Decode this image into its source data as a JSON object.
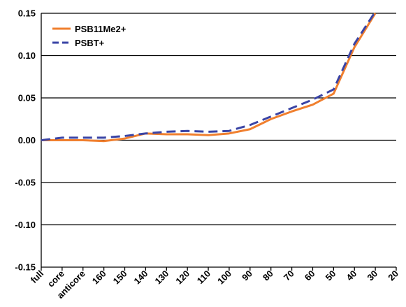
{
  "chart_data": {
    "type": "line",
    "title": "",
    "xlabel": "",
    "ylabel": "",
    "categories": [
      "full",
      "core",
      "anticore",
      "160",
      "150",
      "140",
      "130",
      "120",
      "110",
      "100",
      "90",
      "80",
      "70",
      "60",
      "50",
      "40",
      "30",
      "20"
    ],
    "ylim": [
      -0.15,
      0.15
    ],
    "yticks": [
      "0.15",
      "0.10",
      "0.05",
      "0.00",
      "-0.05",
      "-0.10",
      "-0.15"
    ],
    "grid": "horizontal",
    "legend_position": "top-left",
    "series": [
      {
        "name": "PSB11Me2+",
        "color": "#f07f2e",
        "style": "solid",
        "values": [
          0.0,
          0.0,
          0.0,
          -0.001,
          0.002,
          0.008,
          0.007,
          0.007,
          0.006,
          0.008,
          0.013,
          0.025,
          0.034,
          0.042,
          0.055,
          0.11,
          0.15,
          null
        ]
      },
      {
        "name": "PSBT+",
        "color": "#3a44a5",
        "style": "dashed",
        "values": [
          0.0,
          0.003,
          0.003,
          0.003,
          0.005,
          0.008,
          0.01,
          0.011,
          0.01,
          0.011,
          0.018,
          0.028,
          0.038,
          0.048,
          0.06,
          0.114,
          0.152,
          null
        ]
      }
    ]
  }
}
